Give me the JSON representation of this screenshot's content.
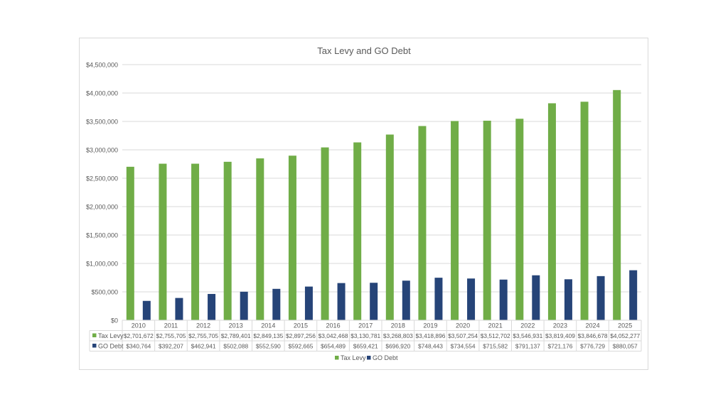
{
  "chart_data": {
    "type": "bar",
    "title": "Tax Levy and GO Debt",
    "categories": [
      "2010",
      "2011",
      "2012",
      "2013",
      "2014",
      "2015",
      "2016",
      "2017",
      "2018",
      "2019",
      "2020",
      "2021",
      "2022",
      "2023",
      "2024",
      "2025"
    ],
    "series": [
      {
        "name": "Tax Levy",
        "color": "#70ad47",
        "values": [
          2701672,
          2755705,
          2755705,
          2789401,
          2849135,
          2897256,
          3042468,
          3130781,
          3268803,
          3418896,
          3507254,
          3512702,
          3546931,
          3819409,
          3846678,
          4052277
        ],
        "labels": [
          "$2,701,672",
          "$2,755,705",
          "$2,755,705",
          "$2,789,401",
          "$2,849,135",
          "$2,897,256",
          "$3,042,468",
          "$3,130,781",
          "$3,268,803",
          "$3,418,896",
          "$3,507,254",
          "$3,512,702",
          "$3,546,931",
          "$3,819,409",
          "$3,846,678",
          "$4,052,277"
        ]
      },
      {
        "name": "GO Debt",
        "color": "#264478",
        "values": [
          340764,
          392207,
          462941,
          502088,
          552590,
          592665,
          654489,
          659421,
          696920,
          748443,
          734554,
          715582,
          791137,
          721176,
          776729,
          880057
        ],
        "labels": [
          "$340,764",
          "$392,207",
          "$462,941",
          "$502,088",
          "$552,590",
          "$592,665",
          "$654,489",
          "$659,421",
          "$696,920",
          "$748,443",
          "$734,554",
          "$715,582",
          "$791,137",
          "$721,176",
          "$776,729",
          "$880,057"
        ]
      }
    ],
    "ylim": [
      0,
      4500000
    ],
    "yticks": [
      "$0",
      "$500,000",
      "$1,000,000",
      "$1,500,000",
      "$2,000,000",
      "$2,500,000",
      "$3,000,000",
      "$3,500,000",
      "$4,000,000",
      "$4,500,000"
    ],
    "grid": true,
    "legend": "bottom",
    "data_table": true
  }
}
